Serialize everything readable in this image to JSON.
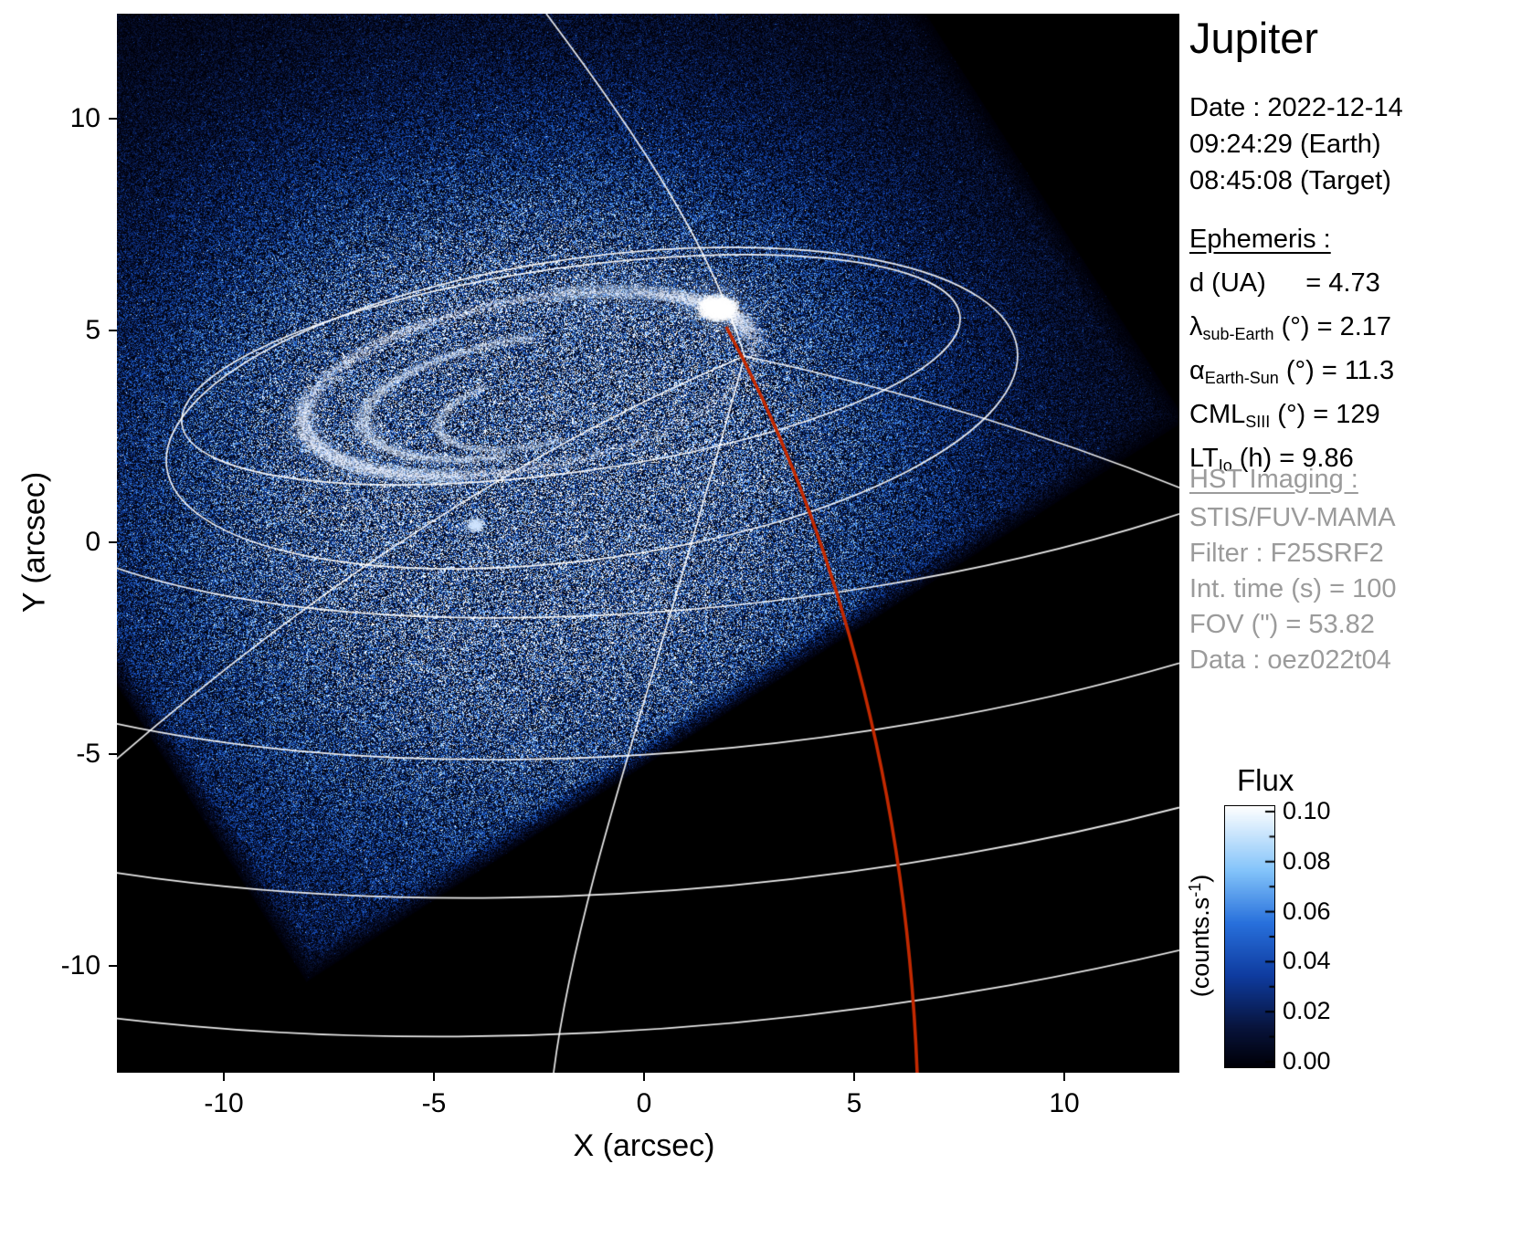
{
  "panel": {
    "title": "Jupiter",
    "date": {
      "line1": "Date : 2022-12-14",
      "line2": "09:24:29 (Earth)",
      "line3": "08:45:08 (Target)"
    },
    "ephemeris": {
      "header": "Ephemeris :",
      "rows": [
        {
          "pre": "d (UA)",
          "sub": "",
          "post": "   = 4.73"
        },
        {
          "pre": "λ",
          "sub": "sub-Earth",
          "post": " (°) = 2.17"
        },
        {
          "pre": "α",
          "sub": "Earth-Sun",
          "post": " (°) = 11.3"
        },
        {
          "pre": "CML",
          "sub": "SIII",
          "post": " (°) = 129"
        },
        {
          "pre": "LT",
          "sub": "Io",
          "post": " (h) = 9.86"
        }
      ]
    },
    "hst": {
      "header": "HST Imaging :",
      "lines": [
        "STIS/FUV-MAMA",
        "Filter : F25SRF2",
        "Int. time (s) = 100",
        "FOV (\") = 53.82",
        "Data : oez022t04"
      ]
    }
  },
  "axes": {
    "x": {
      "label": "X (arcsec)",
      "ticks": [
        "-10",
        "-5",
        "0",
        "5",
        "10"
      ]
    },
    "y": {
      "label": "Y (arcsec)",
      "ticks": [
        "10",
        "5",
        "0",
        "-5",
        "-10"
      ]
    }
  },
  "colorbar": {
    "title": "Flux",
    "unit_pre": "(counts.s",
    "unit_sup": "-1",
    "unit_post": ")",
    "ticks": [
      "0.10",
      "0.08",
      "0.06",
      "0.04",
      "0.02",
      "0.00"
    ],
    "colormap_stops": [
      {
        "t": 0.0,
        "c": "#000008"
      },
      {
        "t": 0.15,
        "c": "#08143c"
      },
      {
        "t": 0.35,
        "c": "#0f3ca0"
      },
      {
        "t": 0.55,
        "c": "#2870dc"
      },
      {
        "t": 0.75,
        "c": "#82c3fa"
      },
      {
        "t": 1.0,
        "c": "#ffffff"
      }
    ]
  },
  "colors": {
    "page_background": "#ffffff",
    "plot_background": "#000000",
    "graticule": "#ffffff",
    "io_track": "#c32900",
    "secondary_text": "#9b9b9b"
  },
  "chart_data": {
    "type": "heatmap",
    "title": "Jupiter",
    "xlabel": "X (arcsec)",
    "ylabel": "Y (arcsec)",
    "xlim": [
      -12.5,
      12.7
    ],
    "ylim": [
      -12.5,
      12.5
    ],
    "x_ticks": [
      -10,
      -5,
      0,
      5,
      10
    ],
    "y_ticks": [
      10,
      5,
      0,
      -5,
      -10
    ],
    "grid": "planetocentric graticule overlaid in white",
    "colorbar": {
      "label": "Flux (counts.s-1)",
      "range": [
        0.0,
        0.1
      ],
      "ticks": [
        0.0,
        0.02,
        0.04,
        0.06,
        0.08,
        0.1
      ],
      "colormap": "black-navy-blue-lightblue-white"
    },
    "content": {
      "description": "HST STIS/FUV-MAMA far-UV image of Jupiter northern aurora: rotated square detector field filled with blue photon-noise speckle, bright auroral oval arc in upper-centre-left, black sky outside detector field",
      "detector_fov_corners_arcsec": [
        [
          -8.0,
          -10.4
        ],
        [
          12.9,
          2.9
        ],
        [
          -0.5,
          23.6
        ],
        [
          -21.4,
          10.4
        ]
      ],
      "auroral_oval_center_arcsec": [
        -2.8,
        3.8
      ],
      "auroral_oval_radii_arcsec": [
        5.4,
        2.0
      ],
      "aurora_peak_arcsec": [
        1.8,
        5.3
      ],
      "overlays": [
        {
          "name": "planetocentric-graticule",
          "color": "#ffffff"
        },
        {
          "name": "main-auroral-oval-contours",
          "color": "#ffffff"
        },
        {
          "name": "io-footprint-track",
          "color": "#c32900",
          "path_arcsec": [
            [
              1.96,
              5.09
            ],
            [
              3.8,
              2.0
            ],
            [
              5.3,
              -2.3
            ],
            [
              6.1,
              -8.0
            ],
            [
              6.5,
              -12.5
            ]
          ]
        }
      ]
    }
  }
}
